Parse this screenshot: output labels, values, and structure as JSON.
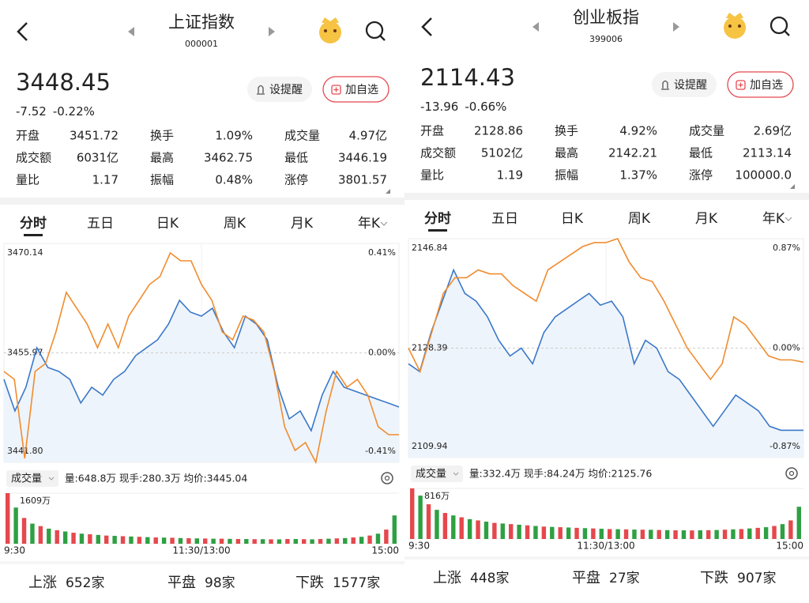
{
  "panels": [
    {
      "title": "上证指数",
      "code": "000001",
      "price": "3448.45",
      "change": "-7.52",
      "change_pct": "-0.22%",
      "alert": "设提醒",
      "add": "加自选",
      "stats": [
        {
          "label": "开盘",
          "value": "3451.72",
          "color": "#2ea043"
        },
        {
          "label": "换手",
          "value": "1.09%",
          "color": "#222222"
        },
        {
          "label": "成交量",
          "value": "4.97亿",
          "color": "#222222"
        },
        {
          "label": "成交额",
          "value": "6031亿",
          "color": "#222222"
        },
        {
          "label": "最高",
          "value": "3462.75",
          "color": "#e5484d"
        },
        {
          "label": "最低",
          "value": "3446.19",
          "color": "#2ea043"
        },
        {
          "label": "量比",
          "value": "1.17",
          "color": "#222222"
        },
        {
          "label": "振幅",
          "value": "0.48%",
          "color": "#222222"
        },
        {
          "label": "涨停",
          "value": "3801.57",
          "color": "#e5484d"
        }
      ],
      "tabs": [
        "分时",
        "五日",
        "日K",
        "周K",
        "月K",
        "年K"
      ],
      "chart": {
        "type": "line",
        "ylim": [
          3441.8,
          3470.14
        ],
        "yticks": [
          {
            "value": 3441.8,
            "label": "3441.80"
          },
          {
            "value": 3455.97,
            "label": "3455.97"
          },
          3470.14
        ],
        "y2lim": [
          -0.41,
          0.41
        ],
        "y2ticks": [
          {
            "value": -0.41,
            "label": "-0.41%"
          },
          {
            "value": 0,
            "label": "0.00%"
          },
          {
            "value": 0.41,
            "label": "0.41%"
          }
        ],
        "series": [
          {
            "color": "#3a78c9",
            "values": [
              3452.54,
              3448.45,
              3451.52,
              3456.64,
              3454.08,
              3453.57,
              3452.54,
              3449.48,
              3451.52,
              3450.5,
              3452.54,
              3453.57,
              3455.61,
              3456.64,
              3457.66,
              3459.71,
              3462.77,
              3461.24,
              3460.73,
              3461.75,
              3458.68,
              3456.64,
              3460.73,
              3459.71,
              3457.66,
              3451.52,
              3447.43,
              3448.45,
              3445.89,
              3450.5,
              3453.57,
              3451.52,
              3451.01,
              3450.5,
              3449.99,
              3449.48,
              3448.96
            ]
          },
          {
            "color": "#f08c2e",
            "values": [
              3453.57,
              3452.54,
              3442.31,
              3453.57,
              3454.59,
              3458.68,
              3463.8,
              3461.75,
              3459.71,
              3456.64,
              3459.71,
              3456.64,
              3460.73,
              3462.77,
              3464.82,
              3465.84,
              3468.91,
              3467.89,
              3467.89,
              3464.82,
              3462.77,
              3458.68,
              3457.66,
              3460.73,
              3460.22,
              3458.68,
              3453.57,
              3446.41,
              3443.34,
              3444.36,
              3441.8,
              3448.45,
              3453.57,
              3451.52,
              3452.54,
              3450.5,
              3446.41,
              3445.38,
              3445.38
            ]
          }
        ]
      },
      "volume_label": "成交量",
      "volume_info": "量:648.8万  现手:280.3万  均价:3445.04",
      "volume": {
        "type": "bar",
        "ylim": [
          0,
          1609
        ],
        "yticks": [
          {
            "value": 1609,
            "label": "1609万"
          }
        ],
        "values": [
          1609,
          1150,
          820,
          640,
          560,
          480,
          430,
          390,
          350,
          320,
          300,
          280,
          260,
          250,
          240,
          230,
          220,
          210,
          200,
          195,
          190,
          180,
          175,
          170,
          165,
          160,
          160,
          155,
          150,
          150,
          145,
          145,
          140,
          140,
          150,
          150,
          145,
          140,
          150,
          160,
          170,
          180,
          200,
          220,
          260,
          320,
          450,
          900
        ],
        "colors": [
          "#e5484d",
          "#2ea043",
          "#e5484d",
          "#2ea043",
          "#e5484d",
          "#2ea043",
          "#e5484d",
          "#2ea043",
          "#e5484d",
          "#2ea043",
          "#e5484d",
          "#2ea043",
          "#e5484d",
          "#2ea043",
          "#e5484d",
          "#2ea043",
          "#e5484d",
          "#2ea043",
          "#e5484d",
          "#2ea043",
          "#e5484d",
          "#2ea043",
          "#e5484d",
          "#2ea043",
          "#e5484d",
          "#2ea043",
          "#e5484d",
          "#2ea043",
          "#e5484d",
          "#2ea043",
          "#e5484d",
          "#2ea043",
          "#e5484d",
          "#2ea043",
          "#e5484d",
          "#2ea043",
          "#e5484d",
          "#2ea043",
          "#e5484d",
          "#2ea043",
          "#e5484d",
          "#2ea043",
          "#e5484d",
          "#2ea043",
          "#e5484d",
          "#2ea043",
          "#e5484d",
          "#2ea043"
        ]
      },
      "time_labels": [
        "9:30",
        "11:30/13:00",
        "15:00"
      ],
      "footer": [
        {
          "label": "上涨",
          "count": "652家",
          "color": "#e5484d"
        },
        {
          "label": "平盘",
          "count": "98家",
          "color": "#b7c1d1"
        },
        {
          "label": "下跌",
          "count": "1577家",
          "color": "#2ea043"
        }
      ]
    },
    {
      "title": "创业板指",
      "code": "399006",
      "price": "2114.43",
      "change": "-13.96",
      "change_pct": "-0.66%",
      "alert": "设提醒",
      "add": "加自选",
      "stats": [
        {
          "label": "开盘",
          "value": "2128.86",
          "color": "#e5484d"
        },
        {
          "label": "换手",
          "value": "4.92%",
          "color": "#222222"
        },
        {
          "label": "成交量",
          "value": "2.69亿",
          "color": "#222222"
        },
        {
          "label": "成交额",
          "value": "5102亿",
          "color": "#222222"
        },
        {
          "label": "最高",
          "value": "2142.21",
          "color": "#e5484d"
        },
        {
          "label": "最低",
          "value": "2113.14",
          "color": "#2ea043"
        },
        {
          "label": "量比",
          "value": "1.19",
          "color": "#222222"
        },
        {
          "label": "振幅",
          "value": "1.37%",
          "color": "#222222"
        },
        {
          "label": "涨停",
          "value": "100000.0",
          "color": "#e5484d"
        }
      ],
      "tabs": [
        "分时",
        "五日",
        "日K",
        "周K",
        "月K",
        "年K"
      ],
      "chart": {
        "type": "line",
        "ylim": [
          2109.94,
          2146.84
        ],
        "yticks": [
          2109.94,
          2128.39,
          2146.84
        ],
        "y2lim": [
          -0.87,
          0.87
        ],
        "y2ticks": [
          {
            "value": -0.87,
            "label": "-0.87%"
          },
          {
            "value": 0,
            "label": "0.00%"
          },
          {
            "value": 0.87,
            "label": "0.87%"
          }
        ],
        "series": [
          {
            "color": "#3a78c9",
            "values": [
              2125.75,
              2124.43,
              2131.02,
              2136.3,
              2141.57,
              2137.61,
              2136.3,
              2133.66,
              2129.71,
              2127.07,
              2128.39,
              2125.75,
              2131.02,
              2133.66,
              2134.98,
              2136.3,
              2137.61,
              2135.64,
              2136.3,
              2133.66,
              2125.75,
              2129.71,
              2128.39,
              2124.43,
              2123.12,
              2120.48,
              2117.84,
              2115.21,
              2117.84,
              2120.48,
              2119.16,
              2117.84,
              2115.21,
              2114.55,
              2114.55,
              2114.55
            ]
          },
          {
            "color": "#f08c2e",
            "values": [
              2128.39,
              2124.43,
              2131.02,
              2137.61,
              2140.25,
              2140.25,
              2141.57,
              2140.91,
              2140.91,
              2138.93,
              2137.61,
              2136.3,
              2141.57,
              2142.89,
              2144.2,
              2145.52,
              2146.18,
              2146.18,
              2146.84,
              2142.89,
              2140.25,
              2139.59,
              2136.3,
              2132.34,
              2128.39,
              2125.75,
              2123.12,
              2125.75,
              2133.66,
              2132.34,
              2129.71,
              2127.07,
              2126.41,
              2126.41,
              2126.02
            ]
          }
        ]
      },
      "volume_label": "成交量",
      "volume_info": "量:332.4万  现手:84.24万  均价:2125.76",
      "volume": {
        "type": "bar",
        "ylim": [
          0,
          816
        ],
        "yticks": [
          {
            "value": 816,
            "label": "816万"
          }
        ],
        "values": [
          816,
          700,
          560,
          470,
          420,
          380,
          350,
          320,
          300,
          280,
          260,
          250,
          240,
          230,
          220,
          210,
          200,
          195,
          190,
          185,
          180,
          175,
          170,
          165,
          160,
          158,
          155,
          152,
          150,
          148,
          145,
          143,
          140,
          140,
          138,
          140,
          142,
          145,
          150,
          155,
          160,
          170,
          180,
          190,
          210,
          240,
          300,
          520
        ],
        "colors": [
          "#e5484d",
          "#2ea043",
          "#e5484d",
          "#2ea043",
          "#e5484d",
          "#2ea043",
          "#e5484d",
          "#2ea043",
          "#e5484d",
          "#2ea043",
          "#e5484d",
          "#2ea043",
          "#e5484d",
          "#2ea043",
          "#e5484d",
          "#2ea043",
          "#e5484d",
          "#2ea043",
          "#e5484d",
          "#2ea043",
          "#e5484d",
          "#2ea043",
          "#e5484d",
          "#2ea043",
          "#e5484d",
          "#2ea043",
          "#e5484d",
          "#2ea043",
          "#e5484d",
          "#2ea043",
          "#e5484d",
          "#2ea043",
          "#e5484d",
          "#2ea043",
          "#e5484d",
          "#2ea043",
          "#e5484d",
          "#2ea043",
          "#e5484d",
          "#2ea043",
          "#e5484d",
          "#2ea043",
          "#e5484d",
          "#2ea043",
          "#e5484d",
          "#2ea043",
          "#e5484d",
          "#2ea043"
        ]
      },
      "time_labels": [
        "9:30",
        "11:30/13:00",
        "15:00"
      ],
      "footer": [
        {
          "label": "上涨",
          "count": "448家",
          "color": "#e5484d"
        },
        {
          "label": "平盘",
          "count": "27家",
          "color": "#b7c1d1"
        },
        {
          "label": "下跌",
          "count": "907家",
          "color": "#2ea043"
        }
      ]
    }
  ]
}
